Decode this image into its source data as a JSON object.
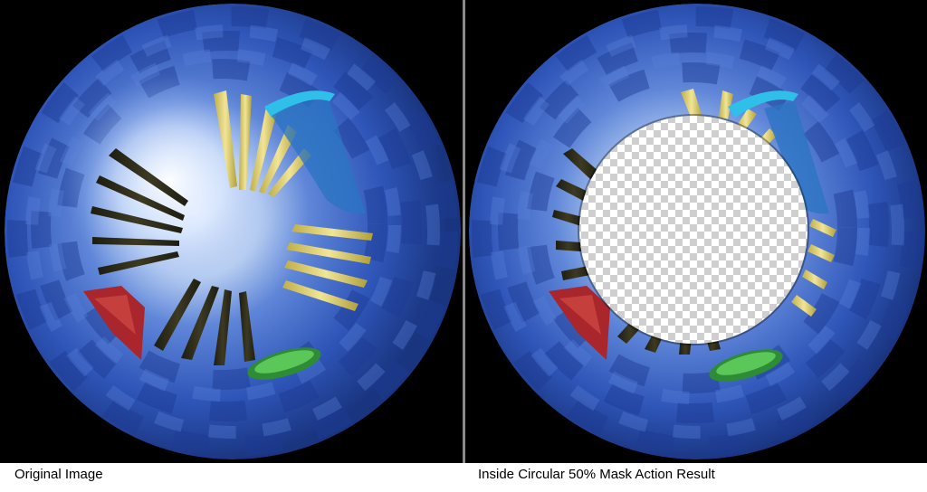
{
  "captions": {
    "original": "Original Image",
    "result": "Inside Circular 50% Mask Action Result"
  },
  "colors": {
    "background": "#000000",
    "tunnel_blue": "#2f5cc4",
    "glow": "#e8f1ff",
    "pillar_dark": "#2c2a18",
    "pillar_yellow": "#e6d878",
    "ribbon_cyan": "#29b7e6",
    "red_shape": "#a8262c",
    "green_disc": "#3fb84a",
    "checker_light": "#ffffff",
    "checker_dark": "#cfcfcf"
  },
  "mask": {
    "type": "inside-circular",
    "percent": 50
  }
}
